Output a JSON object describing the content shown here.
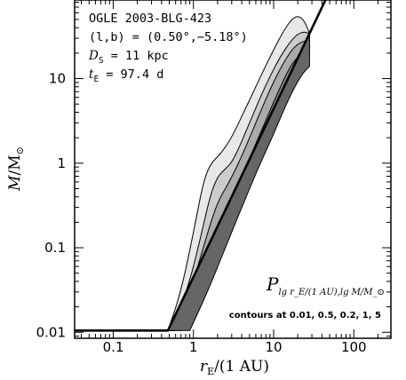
{
  "chart_data": {
    "type": "area",
    "x_scale": "log",
    "y_scale": "log",
    "xlim": [
      0.033,
      290
    ],
    "ylim": [
      0.0085,
      85
    ],
    "x_ticks": [
      {
        "value": 0.1,
        "label": "0.1"
      },
      {
        "value": 1,
        "label": "1"
      },
      {
        "value": 10,
        "label": "10"
      },
      {
        "value": 100,
        "label": "100"
      }
    ],
    "y_ticks": [
      {
        "value": 0.01,
        "label": "0.01"
      },
      {
        "value": 0.1,
        "label": "0.1"
      },
      {
        "value": 1,
        "label": "1"
      },
      {
        "value": 10,
        "label": "10"
      }
    ],
    "xlabel": {
      "main": "r",
      "sub": "E",
      "rest": "/(1 AU)"
    },
    "ylabel": {
      "main": "M",
      "rest": "/M",
      "sub": "⊙"
    },
    "info_lines": [
      {
        "kind": "plain",
        "text": "OGLE 2003-BLG-423"
      },
      {
        "kind": "plain",
        "text": "(l,b) = (0.50°,−5.18°)"
      },
      {
        "kind": "sub",
        "sym": "D",
        "sub": "S",
        "rest": " = 11 kpc"
      },
      {
        "kind": "sub",
        "sym": "t",
        "sub": "E",
        "rest": " = 97.4 d"
      }
    ],
    "probability_label": {
      "main": "P",
      "sub": "lg r_E/(1 AU),lg M/M_⊙"
    },
    "contours_note": "contours at 0.01, 0.5, 0.2, 1, 5",
    "boundary_line": [
      [
        0.033,
        0.0105
      ],
      [
        0.48,
        0.0105
      ],
      [
        45,
        88
      ]
    ],
    "contours": [
      {
        "level": 0.01,
        "fill": "#e8e8e8",
        "upper": [
          [
            0.48,
            0.0105
          ],
          [
            0.7,
            0.03
          ],
          [
            1.0,
            0.15
          ],
          [
            1.3,
            0.55
          ],
          [
            1.6,
            0.97
          ],
          [
            2.2,
            1.3
          ],
          [
            3.0,
            2.0
          ],
          [
            4.5,
            4.5
          ],
          [
            7,
            11
          ],
          [
            10,
            22
          ],
          [
            14,
            40
          ],
          [
            18,
            54
          ],
          [
            22,
            54
          ],
          [
            26,
            42
          ],
          [
            28,
            33
          ]
        ]
      },
      {
        "level": 0.5,
        "fill": "#cccccc",
        "upper": [
          [
            0.55,
            0.0105
          ],
          [
            0.9,
            0.04
          ],
          [
            1.2,
            0.12
          ],
          [
            1.6,
            0.4
          ],
          [
            2.0,
            0.7
          ],
          [
            2.5,
            0.85
          ],
          [
            3.2,
            1.1
          ],
          [
            5,
            3.0
          ],
          [
            8,
            8.5
          ],
          [
            12,
            18
          ],
          [
            16,
            27
          ],
          [
            20,
            34
          ],
          [
            25,
            36
          ],
          [
            28,
            33
          ]
        ]
      },
      {
        "level": 0.2,
        "fill": "#aaaaaa",
        "upper": [
          [
            0.6,
            0.0105
          ],
          [
            1.0,
            0.04
          ],
          [
            1.5,
            0.15
          ],
          [
            2.0,
            0.35
          ],
          [
            2.8,
            0.6
          ],
          [
            4,
            1.2
          ],
          [
            6,
            3.0
          ],
          [
            9,
            7.5
          ],
          [
            13,
            15
          ],
          [
            18,
            24
          ],
          [
            24,
            28
          ],
          [
            28,
            28
          ]
        ]
      },
      {
        "level": 1,
        "fill": "#888888",
        "upper": [
          [
            0.7,
            0.0105
          ],
          [
            1.2,
            0.035
          ],
          [
            2.0,
            0.14
          ],
          [
            3.0,
            0.38
          ],
          [
            4.5,
            0.9
          ],
          [
            7,
            2.4
          ],
          [
            11,
            6.5
          ],
          [
            16,
            14
          ],
          [
            22,
            20
          ],
          [
            28,
            22
          ]
        ]
      },
      {
        "level": 5,
        "fill": "#666666",
        "upper": [
          [
            0.9,
            0.0105
          ],
          [
            1.5,
            0.03
          ],
          [
            2.5,
            0.1
          ],
          [
            4,
            0.3
          ],
          [
            6.5,
            0.9
          ],
          [
            10,
            2.2
          ],
          [
            15,
            5.5
          ],
          [
            22,
            11
          ],
          [
            28,
            14
          ]
        ]
      }
    ]
  }
}
